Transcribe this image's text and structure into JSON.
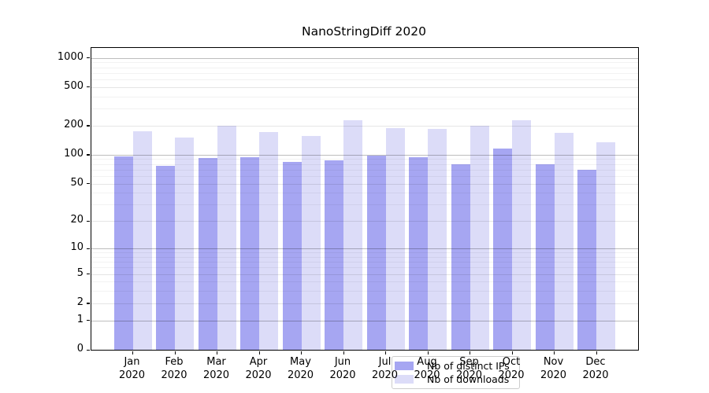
{
  "title": "NanoStringDiff 2020",
  "colors": {
    "ips_bar": "#a6a6f2",
    "downloads_bar": "#dcdcf8",
    "grid_decade": "rgba(0,0,0,0.26)",
    "grid_major": "rgba(0,0,0,0.10)",
    "grid_minor": "rgba(0,0,0,0.05)",
    "axis": "#000000",
    "legend_border": "#cccccc"
  },
  "y_axis": {
    "tick_labels": [
      "0",
      "1",
      "2",
      "5",
      "10",
      "20",
      "50",
      "100",
      "200",
      "500",
      "1000"
    ],
    "tick_values": [
      0,
      1,
      2,
      5,
      10,
      20,
      50,
      100,
      200,
      500,
      1000
    ],
    "decade_values": [
      1,
      10,
      100,
      1000
    ],
    "minor_values": [
      3,
      4,
      6,
      7,
      8,
      9,
      30,
      40,
      60,
      70,
      80,
      90,
      300,
      400,
      600,
      700,
      800,
      900
    ]
  },
  "x_axis": {
    "year": "2020",
    "months": [
      "Jan",
      "Feb",
      "Mar",
      "Apr",
      "May",
      "Jun",
      "Jul",
      "Aug",
      "Sep",
      "Oct",
      "Nov",
      "Dec"
    ]
  },
  "legend": {
    "items": [
      {
        "label": "Nb of distinct IPs",
        "series_key": "ips"
      },
      {
        "label": "Nb of downloads",
        "series_key": "downloads"
      }
    ]
  },
  "chart_data": {
    "type": "bar",
    "title": "NanoStringDiff 2020",
    "categories": [
      "Jan 2020",
      "Feb 2020",
      "Mar 2020",
      "Apr 2020",
      "May 2020",
      "Jun 2020",
      "Jul 2020",
      "Aug 2020",
      "Sep 2020",
      "Oct 2020",
      "Nov 2020",
      "Dec 2020"
    ],
    "series": [
      {
        "name": "Nb of distinct IPs",
        "values": [
          97,
          77,
          92,
          94,
          84,
          87,
          98,
          94,
          80,
          115,
          79,
          70
        ]
      },
      {
        "name": "Nb of downloads",
        "values": [
          174,
          150,
          201,
          173,
          157,
          227,
          188,
          186,
          199,
          226,
          169,
          135
        ]
      }
    ],
    "xlabel": "",
    "ylabel": "",
    "yscale": "log1p",
    "ylim": [
      0,
      1280
    ],
    "grid": true,
    "legend_position": "lower center"
  }
}
